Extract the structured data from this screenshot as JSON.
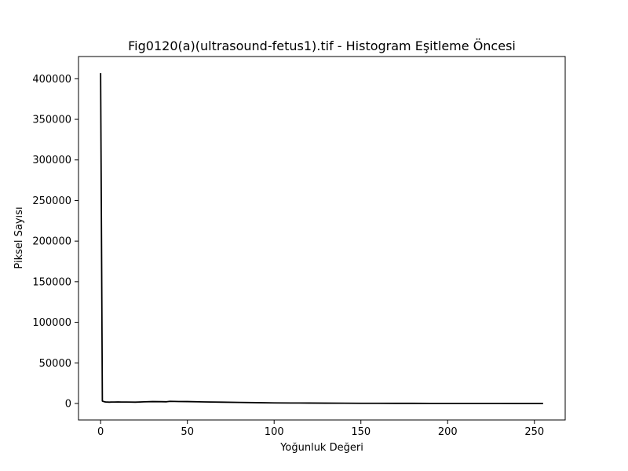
{
  "chart_data": {
    "type": "line",
    "title": "Fig0120(a)(ultrasound-fetus1).tif - Histogram Eşitleme Öncesi",
    "xlabel": "Yoğunluk Değeri",
    "ylabel": "Piksel Sayısı",
    "xlim": [
      -12.75,
      267.75
    ],
    "ylim": [
      -20350,
      427400
    ],
    "xticks": [
      0,
      50,
      100,
      150,
      200,
      250
    ],
    "yticks": [
      0,
      50000,
      100000,
      150000,
      200000,
      250000,
      300000,
      350000,
      400000
    ],
    "grid": false,
    "line_color": "#000000",
    "series": [
      {
        "x": [
          0,
          1,
          2,
          3,
          4,
          5,
          6,
          7,
          8,
          10,
          12,
          15,
          20,
          25,
          30,
          35,
          38,
          40,
          45,
          50,
          60,
          70,
          80,
          90,
          100,
          110,
          120,
          130,
          140,
          150,
          160,
          170,
          180,
          190,
          200,
          210,
          220,
          230,
          240,
          250,
          255
        ],
        "y": [
          407000,
          3000,
          2200,
          1800,
          1700,
          1600,
          1700,
          1800,
          1800,
          1900,
          1800,
          1800,
          1600,
          2000,
          2300,
          2200,
          2100,
          2600,
          2400,
          2300,
          1900,
          1600,
          1300,
          1000,
          700,
          600,
          500,
          400,
          300,
          200,
          200,
          150,
          120,
          100,
          100,
          80,
          60,
          50,
          40,
          30,
          20
        ]
      }
    ]
  }
}
